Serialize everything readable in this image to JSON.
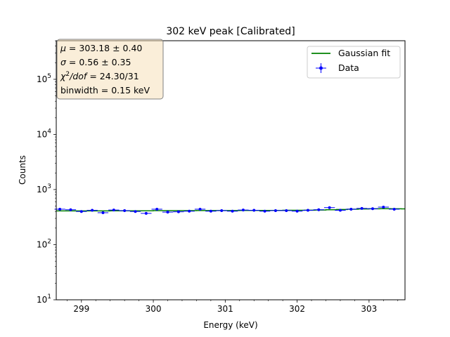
{
  "chart_data": {
    "type": "scatter",
    "title": "302 keV peak [Calibrated]",
    "xlabel": "Energy (keV)",
    "ylabel": "Counts",
    "xlim": [
      298.65,
      303.5
    ],
    "ylim_log10": [
      1,
      5.7
    ],
    "yscale": "log",
    "x_ticks": [
      299,
      300,
      301,
      302,
      303
    ],
    "x_tick_labels": [
      "299",
      "300",
      "301",
      "302",
      "303"
    ],
    "y_tick_exponents": [
      1,
      2,
      3,
      4,
      5
    ],
    "y_tick_base": "10",
    "grid": false,
    "legend_position": "top-right",
    "legend": [
      {
        "label": "Gaussian fit",
        "color": "#008000",
        "marker": "line"
      },
      {
        "label": "Data",
        "color": "#0000ff",
        "marker": "errorbar-point"
      }
    ],
    "annotation": {
      "lines": [
        {
          "sym": "μ",
          "rest": " = 303.18 ± 0.40"
        },
        {
          "sym": "σ",
          "rest": " = 0.56 ± 0.35"
        },
        {
          "sym": "χ",
          "sup": "2",
          "sym2": "/dof",
          "rest": " = 24.30/31"
        },
        {
          "text": "binwidth = 0.15 keV"
        }
      ]
    },
    "series": [
      {
        "name": "Data",
        "kind": "points",
        "color": "#0000ff",
        "x": [
          298.7,
          298.85,
          299.0,
          299.15,
          299.3,
          299.45,
          299.6,
          299.75,
          299.9,
          300.05,
          300.2,
          300.35,
          300.5,
          300.65,
          300.8,
          300.95,
          301.1,
          301.25,
          301.4,
          301.55,
          301.7,
          301.85,
          302.0,
          302.15,
          302.3,
          302.45,
          302.6,
          302.75,
          302.9,
          303.05,
          303.2,
          303.35
        ],
        "y": [
          440,
          430,
          400,
          420,
          380,
          425,
          415,
          400,
          370,
          440,
          390,
          395,
          405,
          440,
          405,
          415,
          405,
          425,
          420,
          405,
          415,
          415,
          405,
          420,
          430,
          470,
          420,
          440,
          455,
          450,
          480,
          440
        ]
      },
      {
        "name": "Gaussian fit",
        "kind": "step",
        "color": "#008000",
        "x": [
          298.65,
          298.8,
          298.95,
          299.1,
          299.25,
          299.4,
          299.55,
          299.7,
          299.85,
          300.0,
          300.15,
          300.3,
          300.45,
          300.6,
          300.75,
          300.9,
          301.05,
          301.2,
          301.35,
          301.5,
          301.65,
          301.8,
          301.95,
          302.1,
          302.25,
          302.4,
          302.55,
          302.7,
          302.85,
          303.0,
          303.15,
          303.3,
          303.45
        ],
        "y": [
          410,
          410,
          410,
          410,
          410,
          412,
          412,
          412,
          412,
          414,
          414,
          414,
          414,
          416,
          416,
          416,
          416,
          418,
          418,
          418,
          418,
          420,
          420,
          422,
          425,
          430,
          435,
          440,
          445,
          448,
          450,
          448,
          446
        ]
      }
    ]
  }
}
